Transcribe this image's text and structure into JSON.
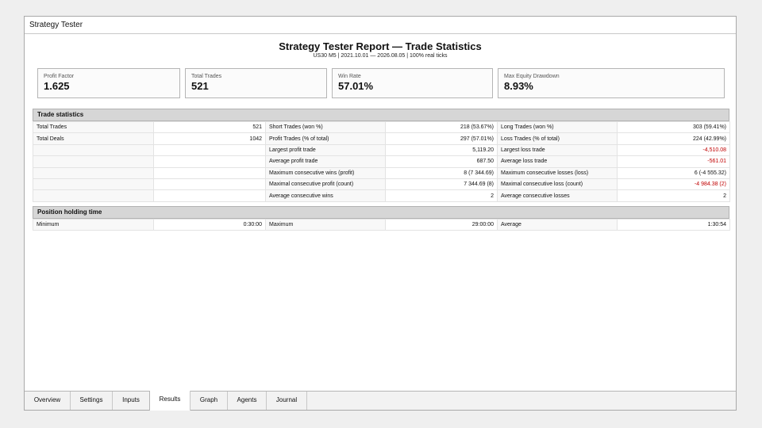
{
  "window": {
    "title": "Strategy Tester"
  },
  "report": {
    "title": "Strategy Tester Report — Trade Statistics",
    "subtitle": "US30 M5 | 2021.10.01 — 2026.08.05 | 100% real ticks"
  },
  "cards": [
    {
      "label": "Profit Factor",
      "value": "1.625"
    },
    {
      "label": "Total Trades",
      "value": "521"
    },
    {
      "label": "Win Rate",
      "value": "57.01%"
    },
    {
      "label": "Max Equity Drawdown",
      "value": "8.93%"
    }
  ],
  "trade_stats": {
    "header": "Trade statistics",
    "rows": [
      [
        "Total Trades",
        "521",
        "Short Trades (won %)",
        "218 (53.67%)",
        "Long Trades (won %)",
        "303 (59.41%)"
      ],
      [
        "Total Deals",
        "1042",
        "Profit Trades (% of total)",
        "297 (57.01%)",
        "Loss Trades (% of total)",
        "224 (42.99%)"
      ],
      [
        "",
        "",
        "Largest profit trade",
        "5,119.20",
        "Largest loss trade",
        "-4,510.08"
      ],
      [
        "",
        "",
        "Average profit trade",
        "687.50",
        "Average loss trade",
        "-561.01"
      ],
      [
        "",
        "",
        "Maximum consecutive wins (profit)",
        "8 (7 344.69)",
        "Maximum consecutive losses (loss)",
        "6 (-4 555.32)"
      ],
      [
        "",
        "",
        "Maximal consecutive profit (count)",
        "7 344.69 (8)",
        "Maximal consecutive loss (count)",
        "-4 984.38 (2)"
      ],
      [
        "",
        "",
        "Average consecutive wins",
        "2",
        "Average consecutive losses",
        "2"
      ]
    ]
  },
  "holding_time": {
    "header": "Position holding time",
    "row": [
      "Minimum",
      "0:30:00",
      "Maximum",
      "29:00:00",
      "Average",
      "1:30:54"
    ]
  },
  "tabs": [
    {
      "label": "Overview",
      "active": false
    },
    {
      "label": "Settings",
      "active": false
    },
    {
      "label": "Inputs",
      "active": false
    },
    {
      "label": "Results",
      "active": true
    },
    {
      "label": "Graph",
      "active": false
    },
    {
      "label": "Agents",
      "active": false
    },
    {
      "label": "Journal",
      "active": false
    }
  ],
  "colors": {
    "negative": "#c00000",
    "header_bg": "#d6d6d6"
  }
}
